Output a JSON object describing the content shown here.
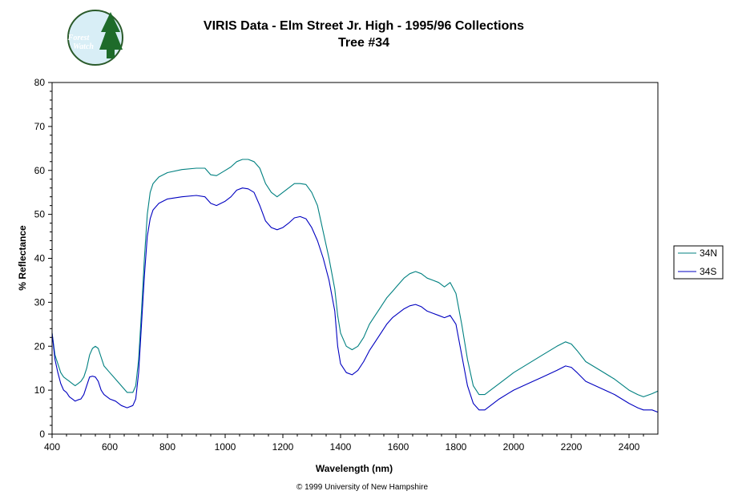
{
  "chart_data": {
    "type": "line",
    "title": "VIRIS Data - Elm Street Jr. High - 1995/96 Collections",
    "subtitle": "Tree #34",
    "xlabel": "Wavelength (nm)",
    "ylabel": "% Reflectance",
    "xlim": [
      400,
      2500
    ],
    "ylim": [
      0,
      80
    ],
    "x_ticks": [
      400,
      600,
      800,
      1000,
      1200,
      1400,
      1600,
      1800,
      2000,
      2200,
      2400
    ],
    "y_ticks": [
      0,
      10,
      20,
      30,
      40,
      50,
      60,
      70,
      80
    ],
    "grid": false,
    "legend": "right",
    "series": [
      {
        "name": "34N",
        "color": "#008080",
        "points": [
          [
            400,
            23
          ],
          [
            410,
            18
          ],
          [
            420,
            16
          ],
          [
            430,
            14
          ],
          [
            440,
            13
          ],
          [
            450,
            12.5
          ],
          [
            460,
            12
          ],
          [
            470,
            11.5
          ],
          [
            480,
            11
          ],
          [
            490,
            11.5
          ],
          [
            500,
            12
          ],
          [
            510,
            13
          ],
          [
            520,
            15
          ],
          [
            530,
            18
          ],
          [
            540,
            19.5
          ],
          [
            550,
            20
          ],
          [
            560,
            19.5
          ],
          [
            570,
            17.5
          ],
          [
            580,
            15.5
          ],
          [
            600,
            14
          ],
          [
            620,
            12.5
          ],
          [
            640,
            11
          ],
          [
            660,
            9.5
          ],
          [
            680,
            9.5
          ],
          [
            690,
            11
          ],
          [
            700,
            17
          ],
          [
            710,
            28
          ],
          [
            720,
            40
          ],
          [
            730,
            50
          ],
          [
            740,
            55
          ],
          [
            750,
            57
          ],
          [
            770,
            58.5
          ],
          [
            800,
            59.5
          ],
          [
            850,
            60.2
          ],
          [
            900,
            60.5
          ],
          [
            930,
            60.5
          ],
          [
            950,
            59
          ],
          [
            970,
            58.8
          ],
          [
            1000,
            60
          ],
          [
            1020,
            60.8
          ],
          [
            1040,
            62
          ],
          [
            1060,
            62.5
          ],
          [
            1080,
            62.5
          ],
          [
            1100,
            62
          ],
          [
            1120,
            60.5
          ],
          [
            1140,
            57
          ],
          [
            1160,
            55
          ],
          [
            1180,
            54
          ],
          [
            1200,
            55
          ],
          [
            1220,
            56
          ],
          [
            1240,
            57
          ],
          [
            1260,
            57
          ],
          [
            1280,
            56.8
          ],
          [
            1300,
            55
          ],
          [
            1320,
            52
          ],
          [
            1340,
            46
          ],
          [
            1360,
            40
          ],
          [
            1380,
            33
          ],
          [
            1390,
            27
          ],
          [
            1400,
            23
          ],
          [
            1420,
            20
          ],
          [
            1440,
            19.2
          ],
          [
            1460,
            20
          ],
          [
            1480,
            22
          ],
          [
            1500,
            25
          ],
          [
            1520,
            27
          ],
          [
            1540,
            29
          ],
          [
            1560,
            31
          ],
          [
            1580,
            32.5
          ],
          [
            1600,
            34
          ],
          [
            1620,
            35.5
          ],
          [
            1640,
            36.5
          ],
          [
            1660,
            37
          ],
          [
            1680,
            36.5
          ],
          [
            1700,
            35.5
          ],
          [
            1720,
            35
          ],
          [
            1740,
            34.5
          ],
          [
            1760,
            33.5
          ],
          [
            1780,
            34.5
          ],
          [
            1800,
            32
          ],
          [
            1820,
            25
          ],
          [
            1840,
            17
          ],
          [
            1860,
            11
          ],
          [
            1880,
            9
          ],
          [
            1900,
            9
          ],
          [
            1920,
            10
          ],
          [
            1950,
            11.5
          ],
          [
            2000,
            14
          ],
          [
            2050,
            16
          ],
          [
            2100,
            18
          ],
          [
            2150,
            20
          ],
          [
            2180,
            21
          ],
          [
            2200,
            20.5
          ],
          [
            2220,
            19
          ],
          [
            2250,
            16.5
          ],
          [
            2300,
            14.5
          ],
          [
            2350,
            12.5
          ],
          [
            2400,
            10
          ],
          [
            2430,
            9
          ],
          [
            2450,
            8.5
          ],
          [
            2480,
            9.2
          ],
          [
            2500,
            9.8
          ]
        ]
      },
      {
        "name": "34S",
        "color": "#0000c0",
        "points": [
          [
            400,
            23
          ],
          [
            410,
            17
          ],
          [
            420,
            14
          ],
          [
            430,
            11.5
          ],
          [
            440,
            10
          ],
          [
            450,
            9.5
          ],
          [
            460,
            8.5
          ],
          [
            470,
            8
          ],
          [
            480,
            7.5
          ],
          [
            490,
            7.8
          ],
          [
            500,
            8
          ],
          [
            510,
            9
          ],
          [
            520,
            11
          ],
          [
            530,
            13
          ],
          [
            540,
            13.2
          ],
          [
            550,
            13
          ],
          [
            560,
            12
          ],
          [
            570,
            10
          ],
          [
            580,
            9
          ],
          [
            600,
            8
          ],
          [
            620,
            7.5
          ],
          [
            640,
            6.5
          ],
          [
            660,
            6
          ],
          [
            680,
            6.5
          ],
          [
            690,
            8
          ],
          [
            700,
            14
          ],
          [
            710,
            25
          ],
          [
            720,
            36
          ],
          [
            730,
            45
          ],
          [
            740,
            49
          ],
          [
            750,
            51
          ],
          [
            770,
            52.5
          ],
          [
            800,
            53.5
          ],
          [
            850,
            54
          ],
          [
            900,
            54.3
          ],
          [
            930,
            54
          ],
          [
            950,
            52.5
          ],
          [
            970,
            52
          ],
          [
            1000,
            53
          ],
          [
            1020,
            54
          ],
          [
            1040,
            55.5
          ],
          [
            1060,
            56
          ],
          [
            1080,
            55.8
          ],
          [
            1100,
            55
          ],
          [
            1120,
            52
          ],
          [
            1140,
            48.5
          ],
          [
            1160,
            47
          ],
          [
            1180,
            46.5
          ],
          [
            1200,
            47
          ],
          [
            1220,
            48
          ],
          [
            1240,
            49.2
          ],
          [
            1260,
            49.5
          ],
          [
            1280,
            49
          ],
          [
            1300,
            47
          ],
          [
            1320,
            44
          ],
          [
            1340,
            40
          ],
          [
            1360,
            35
          ],
          [
            1380,
            28
          ],
          [
            1390,
            20
          ],
          [
            1400,
            16
          ],
          [
            1420,
            14
          ],
          [
            1440,
            13.5
          ],
          [
            1460,
            14.5
          ],
          [
            1480,
            16.5
          ],
          [
            1500,
            19
          ],
          [
            1520,
            21
          ],
          [
            1540,
            23
          ],
          [
            1560,
            25
          ],
          [
            1580,
            26.5
          ],
          [
            1600,
            27.5
          ],
          [
            1620,
            28.5
          ],
          [
            1640,
            29.2
          ],
          [
            1660,
            29.5
          ],
          [
            1680,
            29
          ],
          [
            1700,
            28
          ],
          [
            1720,
            27.5
          ],
          [
            1740,
            27
          ],
          [
            1760,
            26.5
          ],
          [
            1780,
            27
          ],
          [
            1800,
            25
          ],
          [
            1820,
            18
          ],
          [
            1840,
            11
          ],
          [
            1860,
            7
          ],
          [
            1880,
            5.5
          ],
          [
            1900,
            5.5
          ],
          [
            1920,
            6.5
          ],
          [
            1950,
            8
          ],
          [
            2000,
            10
          ],
          [
            2050,
            11.5
          ],
          [
            2100,
            13
          ],
          [
            2150,
            14.5
          ],
          [
            2180,
            15.5
          ],
          [
            2200,
            15.2
          ],
          [
            2220,
            14
          ],
          [
            2250,
            12
          ],
          [
            2300,
            10.5
          ],
          [
            2350,
            9
          ],
          [
            2400,
            7
          ],
          [
            2430,
            6
          ],
          [
            2450,
            5.5
          ],
          [
            2480,
            5.5
          ],
          [
            2500,
            5
          ]
        ]
      }
    ]
  },
  "logo": {
    "line1": "Forest",
    "line2": "Watch"
  },
  "footer": "© 1999 University of New Hampshire"
}
